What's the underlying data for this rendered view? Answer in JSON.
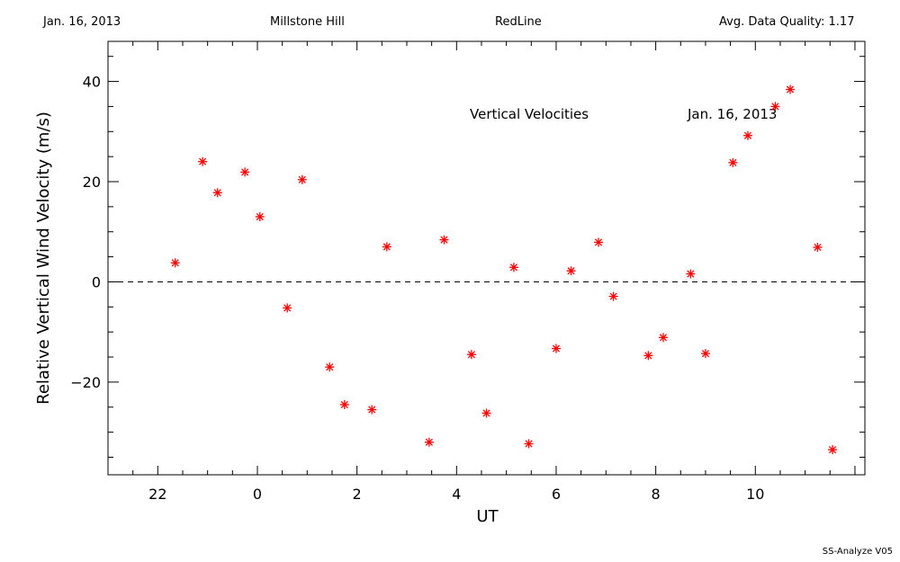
{
  "header": {
    "date": "Jan. 16, 2013",
    "site": "Millstone Hill",
    "instrument": "RedLine",
    "quality": "Avg. Data Quality: 1.17"
  },
  "footer": {
    "software": "SS-Analyze V05"
  },
  "colors": {
    "marker": "#ff0000",
    "axis": "#000000",
    "background": "#ffffff"
  },
  "chart_data": {
    "type": "scatter",
    "title": "",
    "xlabel": "UT",
    "ylabel": "Relative Vertical Wind Velocity (m/s)",
    "x_unit_note": "UT hours, wrapping past midnight (22 then 0)",
    "xlim_ut": [
      21.0,
      12.2
    ],
    "ylim": [
      -38.5,
      48
    ],
    "x_ticks": [
      {
        "label": "22",
        "value": 22
      },
      {
        "label": "0",
        "value": 0
      },
      {
        "label": "2",
        "value": 2
      },
      {
        "label": "4",
        "value": 4
      },
      {
        "label": "6",
        "value": 6
      },
      {
        "label": "8",
        "value": 8
      },
      {
        "label": "10",
        "value": 10
      }
    ],
    "y_ticks": [
      {
        "label": "40",
        "value": 40
      },
      {
        "label": "20",
        "value": 20
      },
      {
        "label": "0",
        "value": 0
      },
      {
        "label": "−20",
        "value": -20
      }
    ],
    "reference_line": {
      "y": 0,
      "style": "dashed"
    },
    "annotations": [
      "Vertical Velocities",
      "Jan. 16, 2013"
    ],
    "marker": "asterisk",
    "points": [
      {
        "x": 22.35,
        "y": 3.8
      },
      {
        "x": 22.9,
        "y": 24.0
      },
      {
        "x": 23.2,
        "y": 17.8
      },
      {
        "x": 23.75,
        "y": 21.9
      },
      {
        "x": 0.05,
        "y": 13.0
      },
      {
        "x": 0.6,
        "y": -5.2
      },
      {
        "x": 0.9,
        "y": 20.4
      },
      {
        "x": 1.45,
        "y": -17.0
      },
      {
        "x": 1.75,
        "y": -24.5
      },
      {
        "x": 2.3,
        "y": -25.5
      },
      {
        "x": 2.6,
        "y": 7.0
      },
      {
        "x": 3.45,
        "y": -32.0
      },
      {
        "x": 3.75,
        "y": 8.4
      },
      {
        "x": 4.3,
        "y": -14.5
      },
      {
        "x": 4.6,
        "y": -26.2
      },
      {
        "x": 5.15,
        "y": 2.9
      },
      {
        "x": 5.45,
        "y": -32.3
      },
      {
        "x": 6.0,
        "y": -13.3
      },
      {
        "x": 6.3,
        "y": 2.2
      },
      {
        "x": 6.85,
        "y": 7.9
      },
      {
        "x": 7.15,
        "y": -2.9
      },
      {
        "x": 7.85,
        "y": -14.7
      },
      {
        "x": 8.15,
        "y": -11.1
      },
      {
        "x": 8.7,
        "y": 1.6
      },
      {
        "x": 9.0,
        "y": -14.3
      },
      {
        "x": 9.55,
        "y": 23.8
      },
      {
        "x": 9.85,
        "y": 29.2
      },
      {
        "x": 10.4,
        "y": 35.0
      },
      {
        "x": 10.7,
        "y": 38.4
      },
      {
        "x": 11.25,
        "y": 6.9
      },
      {
        "x": 11.55,
        "y": -33.5
      }
    ]
  }
}
